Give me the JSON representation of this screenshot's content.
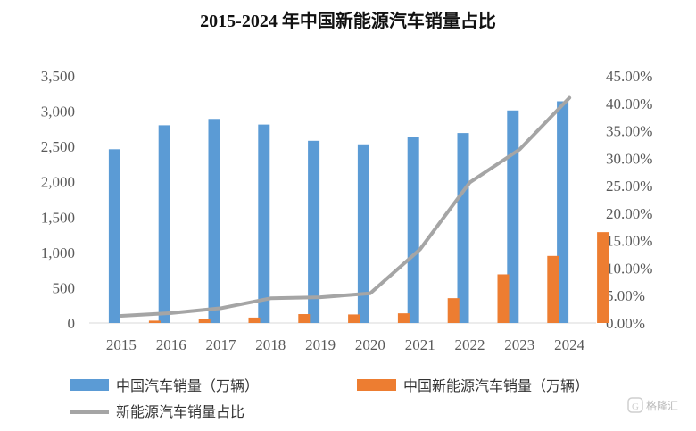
{
  "chart_data": {
    "type": "bar",
    "title": "2015-2024 年中国新能源汽车销量占比",
    "categories": [
      "2015",
      "2016",
      "2017",
      "2018",
      "2019",
      "2020",
      "2021",
      "2022",
      "2023",
      "2024"
    ],
    "series": [
      {
        "name": "中国汽车销量（万辆）",
        "type": "bar",
        "axis": "left",
        "color": "#5B9BD5",
        "values": [
          2460,
          2800,
          2890,
          2810,
          2580,
          2530,
          2630,
          2690,
          3010,
          3140
        ]
      },
      {
        "name": "中国新能源汽车销量（万辆）",
        "type": "bar",
        "axis": "left",
        "color": "#ED7D31",
        "values": [
          33,
          51,
          77,
          126,
          121,
          137,
          352,
          689,
          950,
          1287
        ]
      },
      {
        "name": "新能源汽车销量占比",
        "type": "line",
        "axis": "right",
        "color": "#A5A5A5",
        "values": [
          1.3,
          1.8,
          2.7,
          4.5,
          4.7,
          5.4,
          13.4,
          25.6,
          31.6,
          41.0
        ]
      }
    ],
    "y_left": {
      "min": 0,
      "max": 3500,
      "step": 500,
      "tick_labels": [
        "0",
        "500",
        "1,000",
        "1,500",
        "2,000",
        "2,500",
        "3,000",
        "3,500"
      ]
    },
    "y_right": {
      "min": 0,
      "max": 45,
      "step": 5,
      "tick_labels": [
        "0.00%",
        "5.00%",
        "10.00%",
        "15.00%",
        "20.00%",
        "25.00%",
        "30.00%",
        "35.00%",
        "40.00%",
        "45.00%"
      ]
    },
    "grid": false,
    "legend_position": "bottom"
  },
  "watermark": {
    "text": "格隆汇",
    "icon": "gelonghui-logo-icon"
  }
}
